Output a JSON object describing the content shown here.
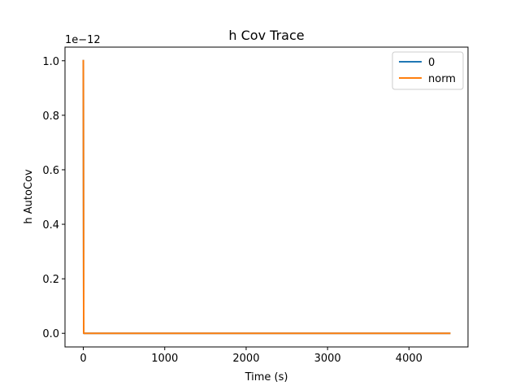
{
  "chart_data": {
    "type": "line",
    "title": "h Cov Trace",
    "xlabel": "Time (s)",
    "ylabel": "h AutoCov",
    "y_offset_label": "1e−12",
    "xlim": [
      -225,
      4725
    ],
    "ylim": [
      -0.05,
      1.05
    ],
    "xticks": [
      0,
      1000,
      2000,
      3000,
      4000
    ],
    "xtick_labels": [
      "0",
      "1000",
      "2000",
      "3000",
      "4000"
    ],
    "yticks": [
      0.0,
      0.2,
      0.4,
      0.6,
      0.8,
      1.0
    ],
    "ytick_labels": [
      "0.0",
      "0.2",
      "0.4",
      "0.6",
      "0.8",
      "1.0"
    ],
    "grid": false,
    "legend_position": "top-right",
    "series": [
      {
        "name": "0",
        "color": "#1f77b4",
        "x": [
          0,
          5,
          4500
        ],
        "y": [
          1.0,
          0.0,
          0.0
        ]
      },
      {
        "name": "norm",
        "color": "#ff7f0e",
        "x": [
          0,
          5,
          4500
        ],
        "y": [
          1.0,
          0.0,
          0.0
        ]
      }
    ]
  }
}
